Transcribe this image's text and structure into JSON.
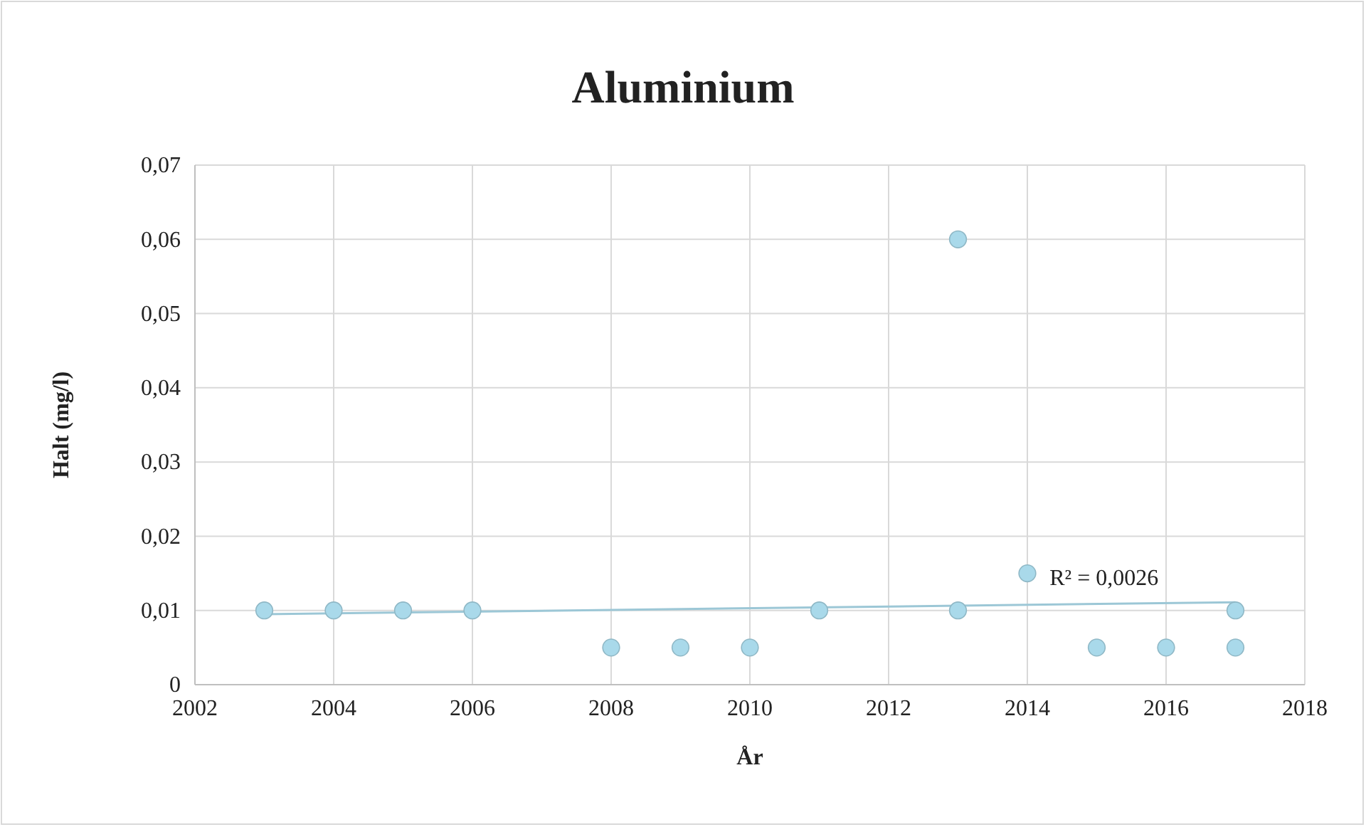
{
  "chart_data": {
    "type": "scatter",
    "title": "Aluminium",
    "xlabel": "År",
    "ylabel": "Halt (mg/l)",
    "series": [
      {
        "color": "#a9d9ea",
        "marker": "circle",
        "x": [
          2003,
          2004,
          2005,
          2006,
          2008,
          2009,
          2010,
          2011,
          2013,
          2013,
          2014,
          2015,
          2016,
          2017,
          2017
        ],
        "values": [
          0.01,
          0.01,
          0.01,
          0.01,
          0.005,
          0.005,
          0.005,
          0.01,
          0.06,
          0.01,
          0.015,
          0.005,
          0.005,
          0.01,
          0.005
        ]
      },
      {
        "type": "line",
        "marker": "none",
        "color": "#9cc7d6",
        "x": [
          2003,
          2017
        ],
        "values": [
          0.0095,
          0.0111
        ]
      }
    ],
    "annotations": [
      "R² = 0,0026"
    ],
    "xlim": [
      2002,
      2018
    ],
    "xticks": [
      2002,
      2004,
      2006,
      2008,
      2010,
      2012,
      2014,
      2016,
      2018
    ],
    "ylim": [
      0,
      0.07
    ],
    "yticks": [
      0,
      {
        "value": 0.01,
        "label": "0,01"
      },
      {
        "value": 0.02,
        "label": "0,02"
      },
      {
        "value": 0.03,
        "label": "0,03"
      },
      {
        "value": 0.04,
        "label": "0,04"
      },
      {
        "value": 0.05,
        "label": "0,05"
      },
      {
        "value": 0.06,
        "label": "0,06"
      },
      {
        "value": 0.07,
        "label": "0,07"
      }
    ],
    "grid": true,
    "line_style": "solid"
  }
}
